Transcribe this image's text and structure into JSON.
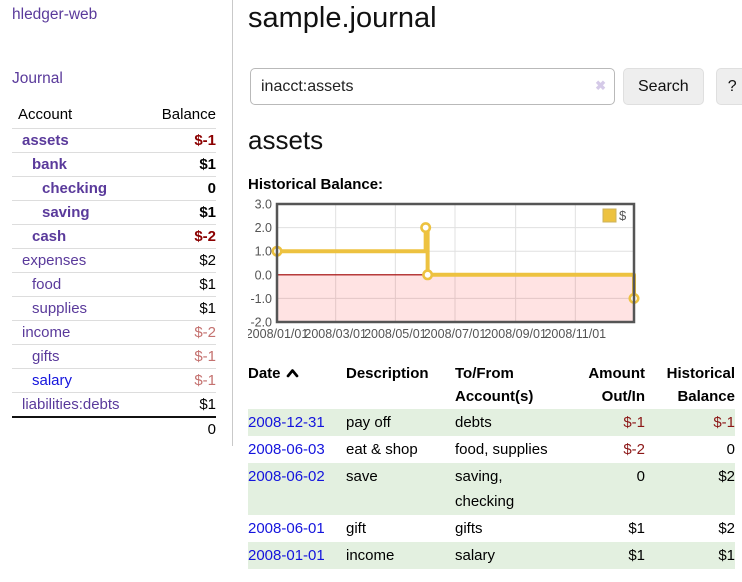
{
  "app": {
    "title": "hledger-web"
  },
  "sidebar": {
    "journal_label": "Journal",
    "accounts": {
      "header_account": "Account",
      "header_balance": "Balance",
      "rows": [
        {
          "name": "assets",
          "depth": 0,
          "balance": "$-1",
          "emphasis": true,
          "balance_tone": "strong-negative",
          "link_tone": "purple"
        },
        {
          "name": "bank",
          "depth": 1,
          "balance": "$1",
          "emphasis": true,
          "balance_tone": "normal",
          "link_tone": "purple"
        },
        {
          "name": "checking",
          "depth": 2,
          "balance": "0",
          "emphasis": true,
          "balance_tone": "normal",
          "link_tone": "purple"
        },
        {
          "name": "saving",
          "depth": 2,
          "balance": "$1",
          "emphasis": true,
          "balance_tone": "normal",
          "link_tone": "purple"
        },
        {
          "name": "cash",
          "depth": 1,
          "balance": "$-2",
          "emphasis": true,
          "balance_tone": "strong-negative",
          "link_tone": "purple"
        },
        {
          "name": "expenses",
          "depth": 0,
          "balance": "$2",
          "emphasis": false,
          "balance_tone": "normal",
          "link_tone": "purple"
        },
        {
          "name": "food",
          "depth": 1,
          "balance": "$1",
          "emphasis": false,
          "balance_tone": "normal",
          "link_tone": "purple"
        },
        {
          "name": "supplies",
          "depth": 1,
          "balance": "$1",
          "emphasis": false,
          "balance_tone": "normal",
          "link_tone": "purple"
        },
        {
          "name": "income",
          "depth": 0,
          "balance": "$-2",
          "emphasis": false,
          "balance_tone": "muted-negative",
          "link_tone": "purple"
        },
        {
          "name": "gifts",
          "depth": 1,
          "balance": "$-1",
          "emphasis": false,
          "balance_tone": "muted-negative",
          "link_tone": "purple"
        },
        {
          "name": "salary",
          "depth": 1,
          "balance": "$-1",
          "emphasis": false,
          "balance_tone": "muted-negative",
          "link_tone": "blue"
        },
        {
          "name": "liabilities:debts",
          "depth": 0,
          "balance": "$1",
          "emphasis": false,
          "balance_tone": "normal",
          "link_tone": "purple"
        }
      ],
      "total": "0"
    }
  },
  "main": {
    "title": "sample.journal",
    "search": {
      "value": "inacct:assets",
      "clear_glyph": "✖",
      "clear_icon": "clear-icon",
      "button_label": "Search",
      "help_label": "?"
    },
    "account_heading": "assets",
    "chart_label": "Historical Balance:"
  },
  "chart_data": {
    "type": "line",
    "step": true,
    "title": "Historical Balance",
    "xlabel": "",
    "ylabel": "",
    "series": [
      {
        "name": "$",
        "color": "#EDC240",
        "points": [
          {
            "date": "2008/01/01",
            "day": 0,
            "y": 1.0
          },
          {
            "date": "2008/06/01",
            "day": 152,
            "y": 2.0
          },
          {
            "date": "2008/06/03",
            "day": 154,
            "y": 0.0
          },
          {
            "date": "2008/12/31",
            "day": 365,
            "y": -1.0
          }
        ]
      }
    ],
    "x_domain_days": [
      0,
      365
    ],
    "ylim": [
      -2.0,
      3.0
    ],
    "x_ticks": [
      {
        "label": "2008/01/01",
        "day": 0
      },
      {
        "label": "2008/03/01",
        "day": 60
      },
      {
        "label": "2008/05/01",
        "day": 121
      },
      {
        "label": "2008/07/01",
        "day": 182
      },
      {
        "label": "2008/09/01",
        "day": 244
      },
      {
        "label": "2008/11/01",
        "day": 305
      }
    ],
    "y_ticks": [
      {
        "label": "3.0",
        "value": 3
      },
      {
        "label": "2.0",
        "value": 2
      },
      {
        "label": "1.0",
        "value": 1
      },
      {
        "label": "0.0",
        "value": 0
      },
      {
        "label": "-1.0",
        "value": -1
      },
      {
        "label": "-2.0",
        "value": -2
      }
    ],
    "grid": true,
    "legend": {
      "label": "$",
      "position": "top-right"
    },
    "negative_zone": {
      "below": 0,
      "fill": "rgba(255,0,0,0.11)",
      "zero_line_color": "#A40000"
    },
    "colors": {
      "grid_line": "#E0E0E0",
      "border": "#555555",
      "tick_text": "#545454"
    }
  },
  "register": {
    "headers": {
      "date": "Date",
      "sort_icon": "chevron-up",
      "description": "Description",
      "accounts": "To/From Account(s)",
      "amount": "Amount Out/In",
      "balance": "Historical Balance"
    },
    "rows": [
      {
        "date": "2008-12-31",
        "description": "pay off",
        "accounts": "debts",
        "amount": "$-1",
        "balance": "$-1",
        "amount_negative": true,
        "balance_negative": true
      },
      {
        "date": "2008-06-03",
        "description": "eat & shop",
        "accounts": "food, supplies",
        "amount": "$-2",
        "balance": "0",
        "amount_negative": true,
        "balance_negative": false
      },
      {
        "date": "2008-06-02",
        "description": "save",
        "accounts": "saving, checking",
        "amount": "0",
        "balance": "$2",
        "amount_negative": false,
        "balance_negative": false
      },
      {
        "date": "2008-06-01",
        "description": "gift",
        "accounts": "gifts",
        "amount": "$1",
        "balance": "$2",
        "amount_negative": false,
        "balance_negative": false
      },
      {
        "date": "2008-01-01",
        "description": "income",
        "accounts": "salary",
        "amount": "$1",
        "balance": "$1",
        "amount_negative": false,
        "balance_negative": false
      }
    ]
  }
}
